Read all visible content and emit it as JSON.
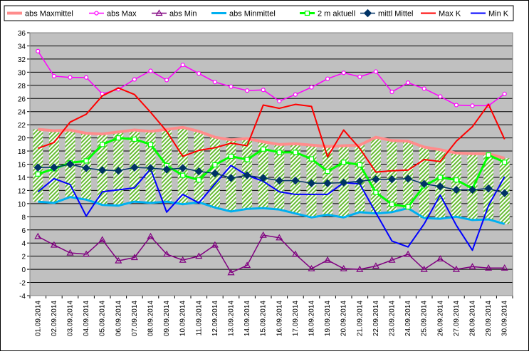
{
  "chart_data": {
    "type": "line",
    "title": "",
    "xlabel": "",
    "ylabel": "",
    "ylim": [
      -4,
      36
    ],
    "ytick_step": 2,
    "grid": true,
    "legend_position": "top",
    "categories": [
      "01.09.2014",
      "02.09.2014",
      "03.09.2014",
      "04.09.2014",
      "05.09.2014",
      "06.09.2014",
      "07.09.2014",
      "08.09.2014",
      "09.09.2014",
      "10.09.2014",
      "11.09.2014",
      "12.09.2014",
      "13.09.2014",
      "14.09.2014",
      "15.09.2014",
      "16.09.2014",
      "17.09.2014",
      "18.09.2014",
      "19.09.2014",
      "20.09.2014",
      "21.09.2014",
      "22.09.2014",
      "23.09.2014",
      "24.09.2014",
      "25.09.2014",
      "26.09.2014",
      "27.09.2014",
      "28.09.2014",
      "29.09.2014",
      "30.09.2014"
    ],
    "series": [
      {
        "name": "abs Maxmittel",
        "color": "#ff8c8c",
        "values": [
          21.3,
          21.1,
          21.2,
          20.7,
          20.6,
          20.9,
          21.2,
          21.0,
          21.3,
          21.6,
          21.0,
          20.1,
          19.7,
          19.9,
          19.4,
          19.0,
          19.1,
          18.9,
          18.7,
          18.8,
          18.9,
          20.1,
          19.6,
          19.5,
          18.6,
          18.2,
          17.7,
          17.6,
          17.6,
          16.9
        ]
      },
      {
        "name": "abs Max",
        "color": "#ff00ff",
        "values": [
          33.2,
          29.4,
          29.2,
          29.2,
          26.7,
          27.4,
          28.9,
          30.2,
          28.8,
          31.1,
          29.8,
          28.5,
          27.8,
          27.2,
          27.3,
          25.6,
          26.6,
          27.7,
          29.0,
          29.9,
          29.3,
          30.1,
          27.0,
          28.4,
          27.5,
          26.3,
          25.0,
          24.9,
          24.9,
          26.7
        ]
      },
      {
        "name": "abs Min",
        "color": "#800080",
        "values": [
          5.0,
          3.7,
          2.5,
          2.3,
          4.5,
          1.3,
          1.8,
          5.0,
          2.3,
          1.4,
          2.0,
          3.7,
          -0.5,
          0.6,
          5.2,
          4.8,
          2.3,
          0.1,
          1.4,
          0.1,
          0.0,
          0.5,
          1.4,
          2.3,
          0.0,
          1.6,
          0.0,
          0.4,
          0.2,
          0.2
        ]
      },
      {
        "name": "abs Minmittel",
        "color": "#00b0f0",
        "values": [
          10.3,
          10.1,
          11.0,
          10.6,
          9.8,
          9.7,
          10.3,
          10.1,
          10.3,
          9.9,
          10.2,
          9.4,
          8.8,
          9.2,
          9.3,
          9.1,
          8.5,
          7.9,
          8.3,
          7.9,
          8.7,
          8.5,
          8.7,
          9.3,
          7.8,
          7.7,
          8.0,
          7.5,
          7.6,
          6.9
        ]
      },
      {
        "name": "2 m aktuell",
        "color": "#00ff00",
        "values": [
          14.5,
          15.3,
          16.2,
          16.5,
          19.0,
          20.0,
          19.8,
          19.0,
          15.8,
          14.3,
          13.6,
          15.9,
          17.2,
          16.7,
          18.3,
          17.8,
          17.8,
          16.8,
          14.9,
          16.3,
          15.9,
          11.7,
          9.9,
          9.5,
          12.7,
          14.0,
          13.6,
          12.3,
          17.4,
          16.3
        ]
      },
      {
        "name": "mittl Mittel",
        "color": "#003366",
        "values": [
          15.5,
          15.5,
          16.0,
          15.4,
          15.1,
          15.0,
          15.5,
          15.4,
          15.2,
          15.4,
          14.9,
          14.6,
          13.9,
          14.3,
          13.9,
          13.5,
          13.5,
          13.1,
          13.1,
          13.2,
          13.4,
          13.7,
          13.7,
          13.8,
          13.0,
          12.6,
          12.1,
          12.1,
          12.3,
          11.6
        ]
      },
      {
        "name": "Max K",
        "color": "#ff0000",
        "values": [
          18.4,
          19.3,
          22.4,
          23.6,
          26.4,
          27.6,
          26.6,
          23.9,
          21.0,
          17.2,
          18.1,
          18.5,
          19.2,
          18.8,
          25.0,
          24.5,
          25.1,
          24.8,
          17.1,
          21.2,
          18.4,
          14.8,
          15.0,
          15.1,
          16.7,
          16.4,
          19.5,
          21.7,
          25.1,
          19.8
        ]
      },
      {
        "name": "Min K",
        "color": "#0000ff",
        "values": [
          11.8,
          13.8,
          12.9,
          8.1,
          11.8,
          12.1,
          12.4,
          15.3,
          8.7,
          11.4,
          10.1,
          13.0,
          15.8,
          14.3,
          13.4,
          11.8,
          11.4,
          11.4,
          11.4,
          13.2,
          13.0,
          8.6,
          4.3,
          3.4,
          6.9,
          11.3,
          6.7,
          2.9,
          9.7,
          14.1
        ]
      }
    ]
  }
}
